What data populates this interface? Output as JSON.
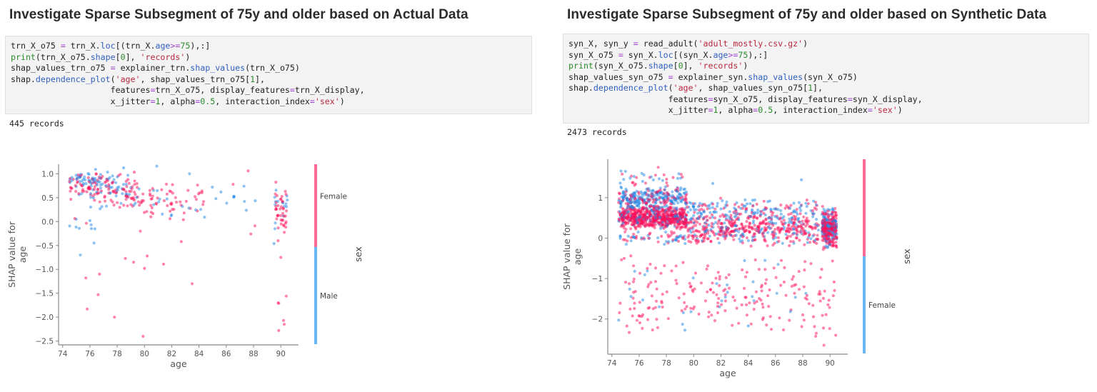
{
  "left": {
    "title": "Investigate Sparse Subsegment of 75y and older based on Actual Data",
    "code_lines": [
      [
        [
          "",
          "trn_X_o75 "
        ],
        [
          "op",
          "="
        ],
        [
          "",
          " trn_X."
        ],
        [
          "fn",
          "loc"
        ],
        [
          "",
          "[(trn_X."
        ],
        [
          "fn",
          "age"
        ],
        [
          "op",
          ">="
        ],
        [
          "nm",
          "75"
        ],
        [
          "",
          "),:]"
        ]
      ],
      [
        [
          "kw",
          "print"
        ],
        [
          "",
          "(trn_X_o75."
        ],
        [
          "fn",
          "shape"
        ],
        [
          "",
          "["
        ],
        [
          "nm",
          "0"
        ],
        [
          "",
          "], "
        ],
        [
          "st",
          "'records'"
        ],
        [
          "",
          ")"
        ]
      ],
      [
        [
          "",
          "shap_values_trn_o75 "
        ],
        [
          "op",
          "="
        ],
        [
          "",
          " explainer_trn."
        ],
        [
          "fn",
          "shap_values"
        ],
        [
          "",
          "(trn_X_o75)"
        ]
      ],
      [
        [
          "",
          "shap."
        ],
        [
          "fn",
          "dependence_plot"
        ],
        [
          "",
          "("
        ],
        [
          "st",
          "'age'"
        ],
        [
          "",
          ", shap_values_trn_o75["
        ],
        [
          "nm",
          "1"
        ],
        [
          "",
          "],"
        ]
      ],
      [
        [
          "",
          "                    features"
        ],
        [
          "op",
          "="
        ],
        [
          "",
          "trn_X_o75, display_features"
        ],
        [
          "op",
          "="
        ],
        [
          "",
          "trn_X_display,"
        ]
      ],
      [
        [
          "",
          "                    x_jitter"
        ],
        [
          "op",
          "="
        ],
        [
          "nm",
          "1"
        ],
        [
          "",
          ", alpha"
        ],
        [
          "op",
          "="
        ],
        [
          "nm",
          "0.5"
        ],
        [
          "",
          ", interaction_index"
        ],
        [
          "op",
          "="
        ],
        [
          "st",
          "'sex'"
        ],
        [
          "",
          ")"
        ]
      ]
    ],
    "output": "445 records"
  },
  "right": {
    "title": "Investigate Sparse Subsegment of 75y and older based on Synthetic Data",
    "code_lines": [
      [
        [
          "",
          "syn_X, syn_y "
        ],
        [
          "op",
          "="
        ],
        [
          "",
          " read_adult("
        ],
        [
          "st",
          "'adult_mostly.csv.gz'"
        ],
        [
          "",
          ")"
        ]
      ],
      [
        [
          "",
          "syn_X_o75 "
        ],
        [
          "op",
          "="
        ],
        [
          "",
          " syn_X."
        ],
        [
          "fn",
          "loc"
        ],
        [
          "",
          "[(syn_X."
        ],
        [
          "fn",
          "age"
        ],
        [
          "op",
          ">="
        ],
        [
          "nm",
          "75"
        ],
        [
          "",
          "),:]"
        ]
      ],
      [
        [
          "kw",
          "print"
        ],
        [
          "",
          "(syn_X_o75."
        ],
        [
          "fn",
          "shape"
        ],
        [
          "",
          "["
        ],
        [
          "nm",
          "0"
        ],
        [
          "",
          "], "
        ],
        [
          "st",
          "'records'"
        ],
        [
          "",
          ")"
        ]
      ],
      [
        [
          "",
          "shap_values_syn_o75 "
        ],
        [
          "op",
          "="
        ],
        [
          "",
          " explainer_syn."
        ],
        [
          "fn",
          "shap_values"
        ],
        [
          "",
          "(syn_X_o75)"
        ]
      ],
      [
        [
          "",
          "shap."
        ],
        [
          "fn",
          "dependence_plot"
        ],
        [
          "",
          "("
        ],
        [
          "st",
          "'age'"
        ],
        [
          "",
          ", shap_values_syn_o75["
        ],
        [
          "nm",
          "1"
        ],
        [
          "",
          "],"
        ]
      ],
      [
        [
          "",
          "                    features"
        ],
        [
          "op",
          "="
        ],
        [
          "",
          "syn_X_o75, display_features"
        ],
        [
          "op",
          "="
        ],
        [
          "",
          "syn_X_display,"
        ]
      ],
      [
        [
          "",
          "                    x_jitter"
        ],
        [
          "op",
          "="
        ],
        [
          "nm",
          "1"
        ],
        [
          "",
          ", alpha"
        ],
        [
          "op",
          "="
        ],
        [
          "nm",
          "0.5"
        ],
        [
          "",
          ", interaction_index"
        ],
        [
          "op",
          "="
        ],
        [
          "st",
          "'sex'"
        ],
        [
          "",
          ")"
        ]
      ]
    ],
    "output": "2473 records"
  },
  "colors": {
    "female": "#ff0d57",
    "male": "#1e88e5",
    "colorbar_top": "#ff6b94",
    "colorbar_bottom": "#6ab7f5",
    "axis": "#888888",
    "tick_text": "#555555"
  },
  "chart_data": [
    {
      "type": "scatter",
      "title": "",
      "xlabel": "age",
      "ylabel": "SHAP value for\nage",
      "xlim": [
        73.7,
        91.3
      ],
      "ylim": [
        -2.58,
        1.2
      ],
      "xticks": [
        74,
        76,
        78,
        80,
        82,
        84,
        86,
        88,
        90
      ],
      "yticks": [
        1.0,
        0.5,
        0.0,
        -0.5,
        -1.0,
        -1.5,
        -2.0,
        -2.5
      ],
      "ytick_labels": [
        "1.0",
        "0.5",
        "0.0",
        "−0.5",
        "−1.0",
        "−1.5",
        "−2.0",
        "−2.5"
      ],
      "colorbar": {
        "label": "sex",
        "top_label": "Female",
        "bottom_label": "Male",
        "split": 0.46
      },
      "n_points": 445,
      "clusters": [
        {
          "x": [
            74.5,
            79.5
          ],
          "y": [
            0.2,
            1.15
          ],
          "n": 170,
          "female_ratio": 0.7
        },
        {
          "x": [
            74.5,
            77.5
          ],
          "y": [
            0.7,
            1.05
          ],
          "n": 40,
          "female_ratio": 0.2
        },
        {
          "x": [
            79.5,
            84.5
          ],
          "y": [
            0.0,
            0.85
          ],
          "n": 70,
          "female_ratio": 0.72
        },
        {
          "x": [
            83.5,
            88.5
          ],
          "y": [
            0.2,
            0.8
          ],
          "n": 14,
          "female_ratio": 0.5
        },
        {
          "x": [
            89.5,
            90.5
          ],
          "y": [
            -0.3,
            0.95
          ],
          "n": 55,
          "female_ratio": 0.75
        },
        {
          "x": [
            74.5,
            76.5
          ],
          "y": [
            -0.3,
            0.2
          ],
          "n": 10,
          "female_ratio": 0.4
        }
      ],
      "outliers": [
        {
          "x": 75.3,
          "y": -0.7,
          "sex": "male"
        },
        {
          "x": 76.3,
          "y": -0.45,
          "sex": "male"
        },
        {
          "x": 75.7,
          "y": -1.18,
          "sex": "female"
        },
        {
          "x": 75.8,
          "y": -1.83,
          "sex": "female"
        },
        {
          "x": 76.7,
          "y": -1.1,
          "sex": "female"
        },
        {
          "x": 76.6,
          "y": -1.53,
          "sex": "female"
        },
        {
          "x": 77.8,
          "y": -2.0,
          "sex": "female"
        },
        {
          "x": 78.6,
          "y": -0.77,
          "sex": "female"
        },
        {
          "x": 79.2,
          "y": -0.85,
          "sex": "female"
        },
        {
          "x": 79.9,
          "y": -2.4,
          "sex": "female"
        },
        {
          "x": 80.0,
          "y": -0.98,
          "sex": "female"
        },
        {
          "x": 80.2,
          "y": -0.72,
          "sex": "female"
        },
        {
          "x": 81.4,
          "y": -0.89,
          "sex": "female"
        },
        {
          "x": 82.7,
          "y": -0.42,
          "sex": "female"
        },
        {
          "x": 83.5,
          "y": -1.3,
          "sex": "female"
        },
        {
          "x": 79.7,
          "y": -0.2,
          "sex": "female"
        },
        {
          "x": 87.8,
          "y": -0.26,
          "sex": "female"
        },
        {
          "x": 88.1,
          "y": -0.09,
          "sex": "female"
        },
        {
          "x": 89.5,
          "y": -0.46,
          "sex": "male"
        },
        {
          "x": 89.8,
          "y": -0.4,
          "sex": "female"
        },
        {
          "x": 90.0,
          "y": -0.75,
          "sex": "female"
        },
        {
          "x": 89.8,
          "y": -1.7,
          "sex": "female"
        },
        {
          "x": 89.85,
          "y": -1.71,
          "sex": "female"
        },
        {
          "x": 90.4,
          "y": -1.56,
          "sex": "female"
        },
        {
          "x": 90.2,
          "y": -2.07,
          "sex": "female"
        },
        {
          "x": 90.25,
          "y": -2.15,
          "sex": "female"
        },
        {
          "x": 89.85,
          "y": -2.28,
          "sex": "female"
        },
        {
          "x": 87.6,
          "y": 1.06,
          "sex": "female"
        },
        {
          "x": 86.5,
          "y": 0.78,
          "sex": "female"
        },
        {
          "x": 87.3,
          "y": 0.74,
          "sex": "male"
        },
        {
          "x": 83.3,
          "y": 1.0,
          "sex": "male"
        },
        {
          "x": 80.9,
          "y": 1.16,
          "sex": "male"
        }
      ]
    },
    {
      "type": "scatter",
      "title": "",
      "xlabel": "age",
      "ylabel": "SHAP value for\nage",
      "xlim": [
        73.7,
        91.3
      ],
      "ylim": [
        -2.87,
        1.95
      ],
      "xticks": [
        74,
        76,
        78,
        80,
        82,
        84,
        86,
        88,
        90
      ],
      "yticks": [
        1,
        0,
        -1,
        -2
      ],
      "ytick_labels": [
        "1",
        "0",
        "−1",
        "−2"
      ],
      "colorbar": {
        "label": "sex",
        "top_label": "",
        "bottom_label": "Female",
        "split": 0.5
      },
      "n_points": 2473,
      "clusters": [
        {
          "x": [
            74.5,
            79.5
          ],
          "y": [
            0.2,
            0.8
          ],
          "n": 650,
          "female_ratio": 0.82
        },
        {
          "x": [
            74.5,
            79.5
          ],
          "y": [
            0.6,
            1.3
          ],
          "n": 330,
          "female_ratio": 0.3
        },
        {
          "x": [
            79.5,
            89.2
          ],
          "y": [
            -0.2,
            0.55
          ],
          "n": 420,
          "female_ratio": 0.72
        },
        {
          "x": [
            79.5,
            89.2
          ],
          "y": [
            0.3,
            1.0
          ],
          "n": 230,
          "female_ratio": 0.4
        },
        {
          "x": [
            89.4,
            90.5
          ],
          "y": [
            -0.3,
            0.8
          ],
          "n": 330,
          "female_ratio": 0.6
        },
        {
          "x": [
            74.5,
            79.5
          ],
          "y": [
            -0.2,
            0.2
          ],
          "n": 60,
          "female_ratio": 0.5
        },
        {
          "x": [
            74.5,
            90.5
          ],
          "y": [
            -2.55,
            -0.3
          ],
          "n": 230,
          "female_ratio": 0.88
        },
        {
          "x": [
            74.5,
            79.5
          ],
          "y": [
            1.2,
            1.75
          ],
          "n": 30,
          "female_ratio": 0.45
        }
      ],
      "outliers": [
        {
          "x": 74.5,
          "y": -2.03,
          "sex": "male"
        },
        {
          "x": 79.8,
          "y": -1.82,
          "sex": "male"
        },
        {
          "x": 87.1,
          "y": -1.82,
          "sex": "male"
        },
        {
          "x": 89.55,
          "y": -2.65,
          "sex": "female"
        },
        {
          "x": 77.4,
          "y": 1.75,
          "sex": "female"
        },
        {
          "x": 87.9,
          "y": 1.44,
          "sex": "male"
        },
        {
          "x": 81.4,
          "y": 1.35,
          "sex": "male"
        },
        {
          "x": 75.0,
          "y": 1.65,
          "sex": "male"
        },
        {
          "x": 76.2,
          "y": 1.6,
          "sex": "male"
        }
      ]
    }
  ]
}
